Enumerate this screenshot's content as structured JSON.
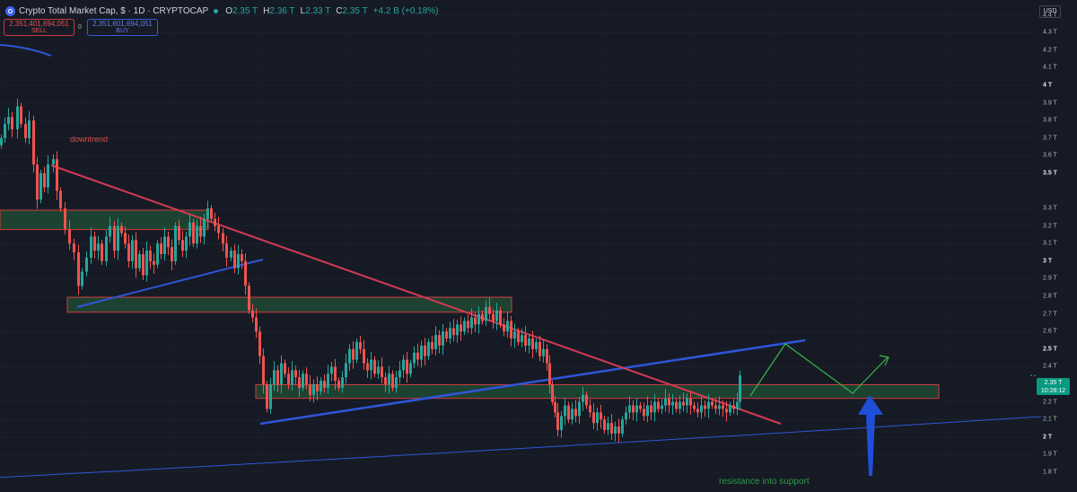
{
  "header": {
    "symbol_title": "Crypto Total Market Cap, $ · 1D · CRYPTOCAP",
    "ohlc": {
      "o_label": "O",
      "o_value": "2.35 T",
      "h_label": "H",
      "h_value": "2.36 T",
      "l_label": "L",
      "l_value": "2.33 T",
      "c_label": "C",
      "c_value": "2.35 T",
      "change": "+4.2 B (+0.18%)"
    },
    "sell": {
      "price": "2,351,401,694,051",
      "label": "SELL"
    },
    "spread": "0",
    "buy": {
      "price": "2,351,601,694,051",
      "label": "BUY"
    },
    "currency": "USD"
  },
  "price_tag": {
    "price": "2.35 T",
    "countdown": "10:28:12"
  },
  "annotations": {
    "downtrend": "downtrend",
    "support": "resistance into support"
  },
  "colors": {
    "background": "#161a25",
    "up": "#26a69a",
    "down": "#ef5350",
    "zone_fill": "#1f4a35",
    "zone_border": "#d23b3b",
    "downtrend_line": "#d23b52",
    "blue_line": "#2f56d8",
    "projection": "#3bb54a",
    "arrow": "#1e4fd8"
  },
  "chart_data": {
    "type": "candlestick",
    "series": [
      {
        "name": "Crypto Total Market Cap",
        "unit": "T USD",
        "last": 2.35
      }
    ],
    "y_axis": {
      "ticks": [
        "4.4 T",
        "4.3 T",
        "4.2 T",
        "4.1 T",
        "4 T",
        "3.9 T",
        "3.8 T",
        "3.7 T",
        "3.6 T",
        "3.5 T",
        "3.3 T",
        "3.2 T",
        "3.1 T",
        "3 T",
        "2.9 T",
        "2.8 T",
        "2.7 T",
        "2.6 T",
        "2.5 T",
        "2.4 T",
        "2.2 T",
        "2.1 T",
        "2 T",
        "1.9 T",
        "1.8 T"
      ],
      "bold_ticks": [
        "4 T",
        "3.5 T",
        "3 T",
        "2.5 T",
        "2 T"
      ],
      "ylim": [
        1.78,
        4.47
      ]
    },
    "candles_trace": [
      [
        0,
        3.7
      ],
      [
        4,
        3.78
      ],
      [
        8,
        3.82
      ],
      [
        12,
        3.75
      ],
      [
        18,
        3.88
      ],
      [
        22,
        3.78
      ],
      [
        27,
        3.7
      ],
      [
        31,
        3.8
      ],
      [
        36,
        3.55
      ],
      [
        40,
        3.35
      ],
      [
        44,
        3.5
      ],
      [
        48,
        3.42
      ],
      [
        52,
        3.55
      ],
      [
        58,
        3.58
      ],
      [
        62,
        3.4
      ],
      [
        66,
        3.3
      ],
      [
        71,
        3.18
      ],
      [
        76,
        3.1
      ],
      [
        81,
        3.05
      ],
      [
        86,
        2.86
      ],
      [
        90,
        2.94
      ],
      [
        95,
        3.02
      ],
      [
        100,
        3.14
      ],
      [
        104,
        3.06
      ],
      [
        108,
        3.1
      ],
      [
        112,
        3.0
      ],
      [
        117,
        3.14
      ],
      [
        121,
        3.2
      ],
      [
        126,
        3.06
      ],
      [
        130,
        3.2
      ],
      [
        134,
        3.16
      ],
      [
        138,
        3.1
      ],
      [
        142,
        3.0
      ],
      [
        146,
        3.12
      ],
      [
        150,
        2.96
      ],
      [
        154,
        3.04
      ],
      [
        158,
        2.92
      ],
      [
        162,
        3.06
      ],
      [
        166,
        3.0
      ],
      [
        170,
        2.98
      ],
      [
        174,
        3.1
      ],
      [
        178,
        3.04
      ],
      [
        182,
        3.14
      ],
      [
        186,
        3.08
      ],
      [
        190,
        3.0
      ],
      [
        194,
        3.2
      ],
      [
        198,
        3.12
      ],
      [
        202,
        3.06
      ],
      [
        206,
        3.14
      ],
      [
        210,
        3.22
      ],
      [
        214,
        3.1
      ],
      [
        218,
        3.2
      ],
      [
        222,
        3.14
      ],
      [
        226,
        3.24
      ],
      [
        230,
        3.3
      ],
      [
        234,
        3.24
      ],
      [
        238,
        3.2
      ],
      [
        242,
        3.16
      ],
      [
        247,
        3.1
      ],
      [
        251,
        3.02
      ],
      [
        256,
        3.06
      ],
      [
        260,
        2.96
      ],
      [
        264,
        3.04
      ],
      [
        268,
        3.0
      ],
      [
        272,
        2.86
      ],
      [
        276,
        2.72
      ],
      [
        280,
        2.68
      ],
      [
        284,
        2.6
      ],
      [
        288,
        2.46
      ],
      [
        292,
        2.3
      ],
      [
        296,
        2.16
      ],
      [
        300,
        2.3
      ],
      [
        304,
        2.38
      ],
      [
        308,
        2.3
      ],
      [
        312,
        2.42
      ],
      [
        316,
        2.36
      ],
      [
        320,
        2.3
      ],
      [
        324,
        2.38
      ],
      [
        328,
        2.34
      ],
      [
        332,
        2.28
      ],
      [
        336,
        2.36
      ],
      [
        340,
        2.3
      ],
      [
        344,
        2.24
      ],
      [
        348,
        2.3
      ],
      [
        352,
        2.26
      ],
      [
        356,
        2.32
      ],
      [
        360,
        2.28
      ],
      [
        364,
        2.36
      ],
      [
        368,
        2.4
      ],
      [
        372,
        2.32
      ],
      [
        376,
        2.28
      ],
      [
        380,
        2.34
      ],
      [
        384,
        2.42
      ],
      [
        388,
        2.5
      ],
      [
        392,
        2.44
      ],
      [
        396,
        2.54
      ],
      [
        400,
        2.5
      ],
      [
        404,
        2.42
      ],
      [
        408,
        2.38
      ],
      [
        412,
        2.44
      ],
      [
        416,
        2.36
      ],
      [
        420,
        2.4
      ],
      [
        424,
        2.34
      ],
      [
        428,
        2.3
      ],
      [
        432,
        2.36
      ],
      [
        436,
        2.28
      ],
      [
        440,
        2.34
      ],
      [
        444,
        2.38
      ],
      [
        448,
        2.44
      ],
      [
        452,
        2.36
      ],
      [
        456,
        2.42
      ],
      [
        460,
        2.48
      ],
      [
        464,
        2.44
      ],
      [
        468,
        2.52
      ],
      [
        472,
        2.46
      ],
      [
        476,
        2.54
      ],
      [
        480,
        2.5
      ],
      [
        484,
        2.58
      ],
      [
        488,
        2.52
      ],
      [
        492,
        2.6
      ],
      [
        496,
        2.56
      ],
      [
        500,
        2.62
      ],
      [
        504,
        2.58
      ],
      [
        508,
        2.64
      ],
      [
        512,
        2.6
      ],
      [
        516,
        2.66
      ],
      [
        520,
        2.62
      ],
      [
        524,
        2.68
      ],
      [
        528,
        2.64
      ],
      [
        532,
        2.7
      ],
      [
        536,
        2.66
      ],
      [
        540,
        2.74
      ],
      [
        544,
        2.7
      ],
      [
        548,
        2.66
      ],
      [
        552,
        2.72
      ],
      [
        556,
        2.64
      ],
      [
        560,
        2.6
      ],
      [
        564,
        2.66
      ],
      [
        568,
        2.56
      ],
      [
        572,
        2.6
      ],
      [
        576,
        2.54
      ],
      [
        580,
        2.58
      ],
      [
        584,
        2.52
      ],
      [
        588,
        2.56
      ],
      [
        592,
        2.5
      ],
      [
        596,
        2.54
      ],
      [
        600,
        2.46
      ],
      [
        604,
        2.5
      ],
      [
        608,
        2.42
      ],
      [
        611,
        2.3
      ],
      [
        614,
        2.2
      ],
      [
        617,
        2.14
      ],
      [
        620,
        2.04
      ],
      [
        624,
        2.12
      ],
      [
        628,
        2.18
      ],
      [
        632,
        2.1
      ],
      [
        636,
        2.16
      ],
      [
        640,
        2.12
      ],
      [
        644,
        2.2
      ],
      [
        648,
        2.24
      ],
      [
        652,
        2.18
      ],
      [
        656,
        2.14
      ],
      [
        660,
        2.08
      ],
      [
        664,
        2.14
      ],
      [
        668,
        2.1
      ],
      [
        672,
        2.04
      ],
      [
        676,
        2.08
      ],
      [
        680,
        2.02
      ],
      [
        684,
        2.06
      ],
      [
        688,
        2.02
      ],
      [
        692,
        2.1
      ],
      [
        696,
        2.14
      ],
      [
        700,
        2.18
      ],
      [
        704,
        2.14
      ],
      [
        708,
        2.18
      ],
      [
        712,
        2.16
      ],
      [
        716,
        2.12
      ],
      [
        720,
        2.18
      ],
      [
        724,
        2.14
      ],
      [
        728,
        2.2
      ],
      [
        732,
        2.16
      ],
      [
        736,
        2.18
      ],
      [
        740,
        2.22
      ],
      [
        744,
        2.18
      ],
      [
        748,
        2.2
      ],
      [
        752,
        2.16
      ],
      [
        756,
        2.2
      ],
      [
        760,
        2.18
      ],
      [
        764,
        2.22
      ],
      [
        768,
        2.18
      ],
      [
        772,
        2.16
      ],
      [
        776,
        2.14
      ],
      [
        780,
        2.18
      ],
      [
        784,
        2.16
      ],
      [
        788,
        2.2
      ],
      [
        792,
        2.18
      ],
      [
        796,
        2.16
      ],
      [
        800,
        2.18
      ],
      [
        804,
        2.16
      ],
      [
        808,
        2.14
      ],
      [
        812,
        2.18
      ],
      [
        816,
        2.16
      ],
      [
        820,
        2.2
      ],
      [
        823,
        2.35
      ]
    ],
    "zones": [
      {
        "name": "zone-1",
        "y_top": 3.29,
        "y_bottom": 3.18
      },
      {
        "name": "zone-2",
        "y_top": 2.795,
        "y_bottom": 2.71
      },
      {
        "name": "zone-3",
        "y_top": 2.298,
        "y_bottom": 2.22
      }
    ]
  }
}
